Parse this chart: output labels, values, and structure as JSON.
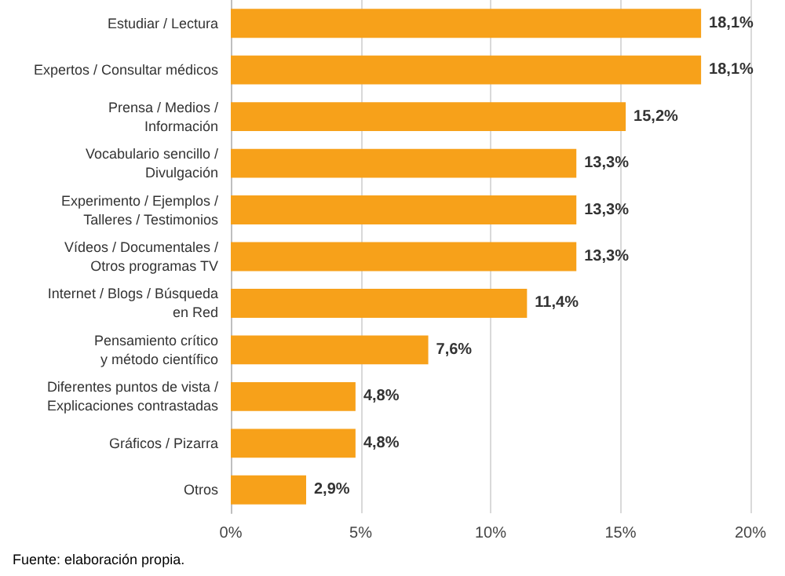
{
  "chart_data": {
    "type": "bar",
    "orientation": "horizontal",
    "categories": [
      "Estudiar / Lectura",
      "Expertos / Consultar médicos",
      "Prensa / Medios /\nInformación",
      "Vocabulario sencillo /\nDivulgación",
      "Experimento / Ejemplos /\nTalleres / Testimonios",
      "Vídeos / Documentales /\nOtros programas TV",
      "Internet / Blogs / Búsqueda\nen Red",
      "Pensamiento crítico\ny método científico",
      "Diferentes puntos de vista /\nExplicaciones contrastadas",
      "Gráficos / Pizarra",
      "Otros"
    ],
    "values": [
      18.1,
      18.1,
      15.2,
      13.3,
      13.3,
      13.3,
      11.4,
      7.6,
      4.8,
      4.8,
      2.9
    ],
    "value_labels": [
      "18,1%",
      "18,1%",
      "15,2%",
      "13,3%",
      "13,3%",
      "13,3%",
      "11,4%",
      "7,6%",
      "4,8%",
      "4,8%",
      "2,9%"
    ],
    "color": "#f7a11a",
    "xlim": [
      0,
      20
    ],
    "xticks": [
      {
        "value": 0,
        "label": "0%"
      },
      {
        "value": 5,
        "label": "5%"
      },
      {
        "value": 10,
        "label": "10%"
      },
      {
        "value": 15,
        "label": "15%"
      },
      {
        "value": 20,
        "label": "20%"
      }
    ],
    "grid": "x",
    "annotations": [
      "Fuente: elaboración propia."
    ]
  }
}
